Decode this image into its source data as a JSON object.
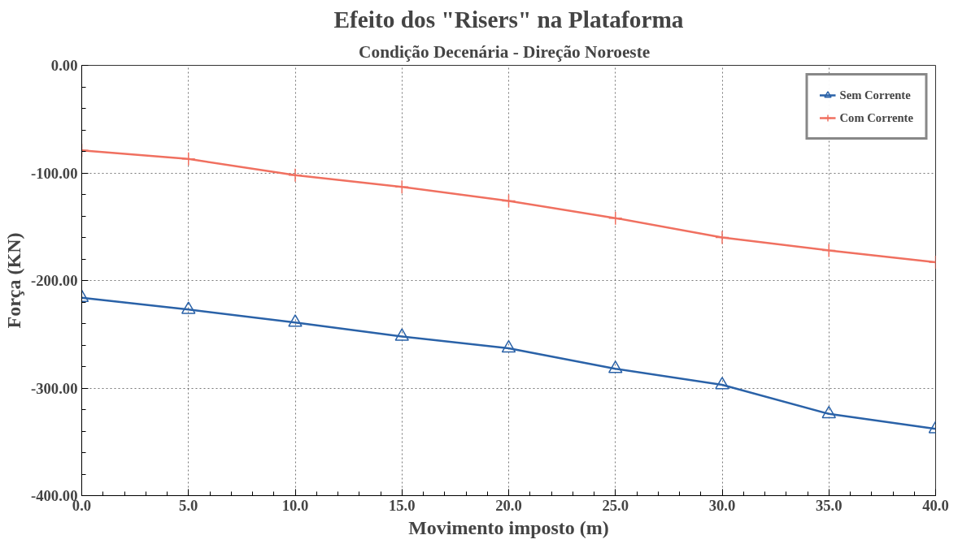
{
  "chart_data": {
    "type": "line",
    "title": "Efeito dos \"Risers\" na Plataforma",
    "subtitle": "Condição Decenária  -  Direção Noroeste",
    "xlabel": "Movimento imposto (m)",
    "ylabel": "Força (KN)",
    "x": [
      0,
      5,
      10,
      15,
      20,
      25,
      30,
      35,
      40
    ],
    "series": [
      {
        "name": "Sem Corrente",
        "color": "#2a62a8",
        "marker": "triangle",
        "values": [
          -216,
          -227,
          -239,
          -252,
          -263,
          -282,
          -297,
          -324,
          -338
        ]
      },
      {
        "name": "Com Corrente",
        "color": "#f07060",
        "marker": "cross",
        "values": [
          -79,
          -87,
          -102,
          -113,
          -126,
          -142,
          -160,
          -172,
          -183
        ]
      }
    ],
    "xlim": [
      0,
      40
    ],
    "ylim": [
      -400,
      0
    ],
    "xticks": [
      {
        "value": 0,
        "label": "0.0"
      },
      {
        "value": 5,
        "label": "5.0"
      },
      {
        "value": 10,
        "label": "10.0"
      },
      {
        "value": 15,
        "label": "15.0"
      },
      {
        "value": 20,
        "label": "20.0"
      },
      {
        "value": 25,
        "label": "25.0"
      },
      {
        "value": 30,
        "label": "30.0"
      },
      {
        "value": 35,
        "label": "35.0"
      },
      {
        "value": 40,
        "label": "40.0"
      }
    ],
    "yticks": [
      {
        "value": -400,
        "label": "-400.00"
      },
      {
        "value": -300,
        "label": "-300.00"
      },
      {
        "value": -200,
        "label": "-200.00"
      },
      {
        "value": -100,
        "label": "-100.00"
      },
      {
        "value": 0,
        "label": "0.00"
      }
    ],
    "grid": true,
    "legend": "top right",
    "line_style": "solid"
  }
}
